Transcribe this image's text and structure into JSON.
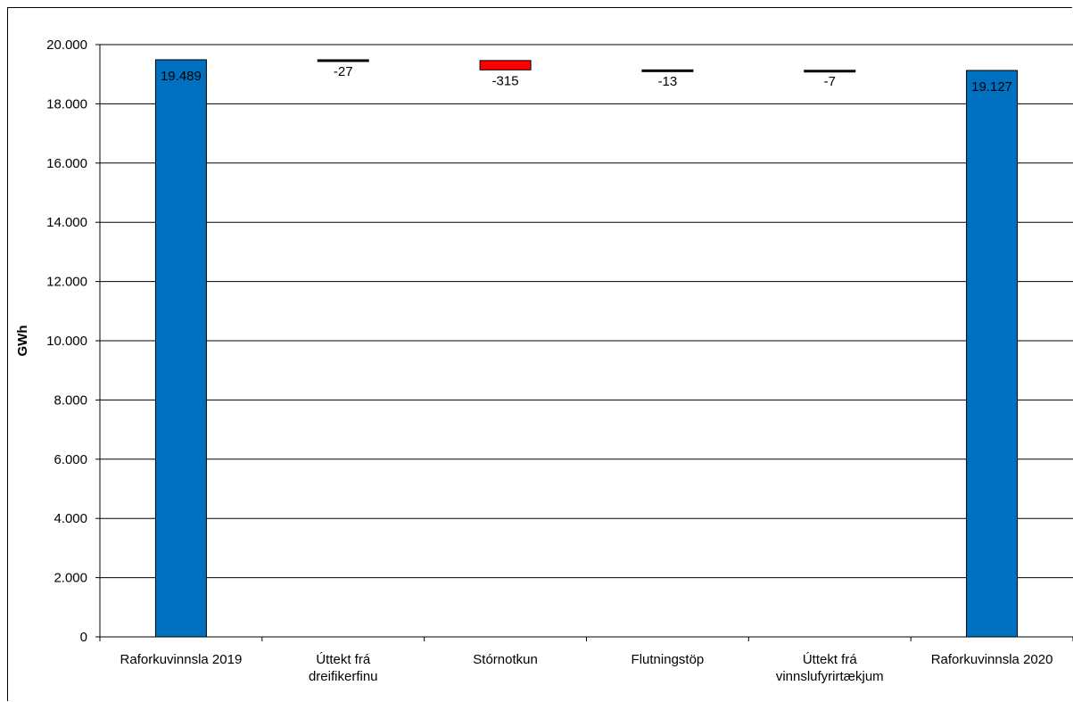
{
  "chart_data": {
    "type": "bar",
    "subtype": "waterfall",
    "ylabel": "GWh",
    "xlabel": "",
    "ylim": [
      0,
      20000
    ],
    "yticks": [
      0,
      2000,
      4000,
      6000,
      8000,
      10000,
      12000,
      14000,
      16000,
      18000,
      20000
    ],
    "ytick_labels": [
      "0",
      "2.000",
      "4.000",
      "6.000",
      "8.000",
      "10.000",
      "12.000",
      "14.000",
      "16.000",
      "18.000",
      "20.000"
    ],
    "grid": true,
    "legend": "none",
    "categories": [
      [
        "Raforkuvinnsla 2019"
      ],
      [
        "Úttekt frá",
        "dreifikerfinu"
      ],
      [
        "Stórnotkun"
      ],
      [
        "Flutningstöp"
      ],
      [
        "Úttekt frá",
        "vinnslufyrirtækjum"
      ],
      [
        "Raforkuvinnsla 2020"
      ]
    ],
    "values": [
      19489,
      -27,
      -315,
      -13,
      -7,
      19127
    ],
    "data_labels": [
      "19.489",
      "-27",
      "-315",
      "-13",
      "-7",
      "19.127"
    ],
    "bar_kinds": [
      "total",
      "delta",
      "delta",
      "delta",
      "delta",
      "total"
    ],
    "colors": {
      "total": "#0070C0",
      "delta": "#000000",
      "large_delta": "#FF0000"
    }
  }
}
